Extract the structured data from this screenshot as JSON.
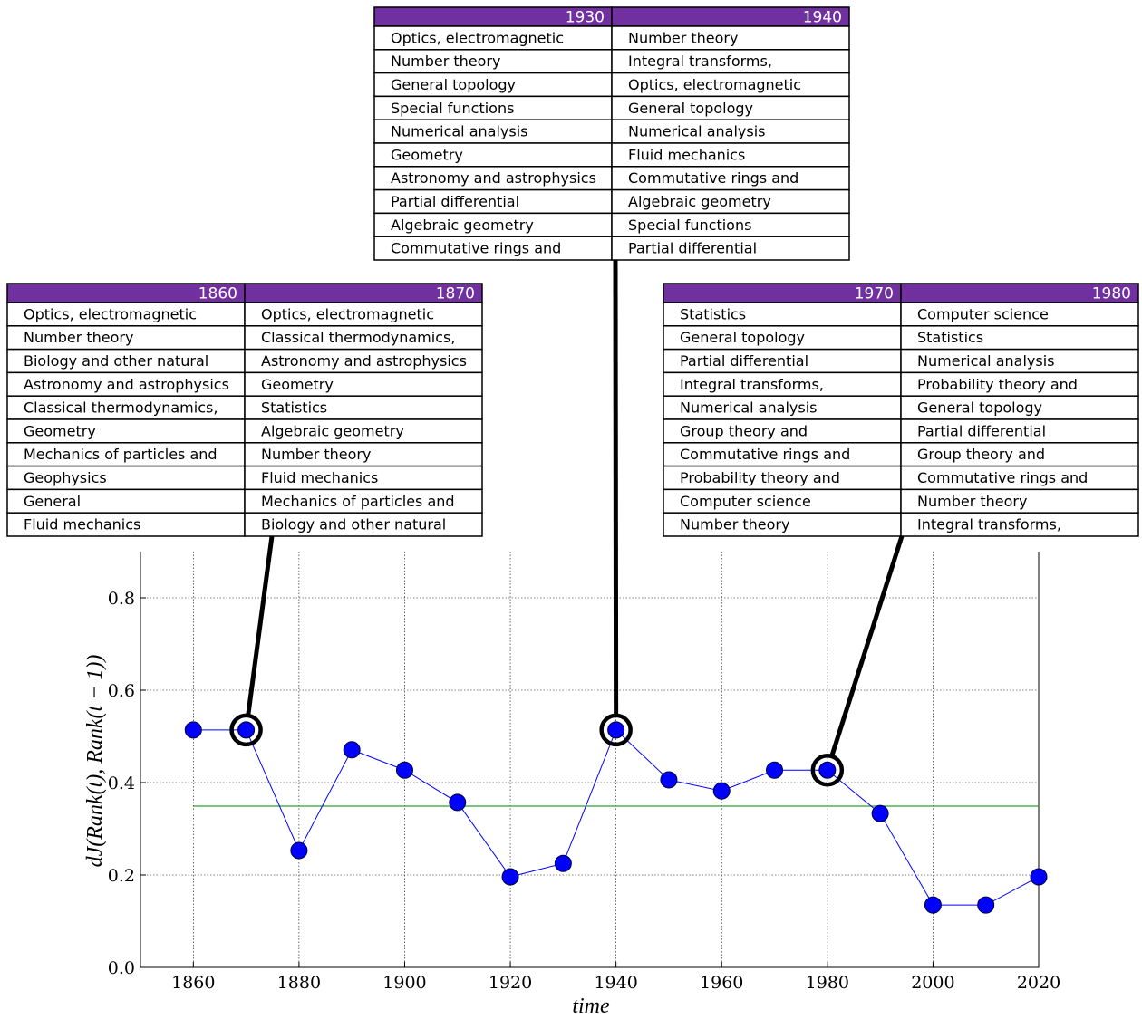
{
  "chart_data": {
    "type": "line",
    "x_label": "time",
    "y_label": "dJ(Rank(t), Rank(t − 1))",
    "x": [
      1860,
      1870,
      1880,
      1890,
      1900,
      1910,
      1920,
      1930,
      1940,
      1950,
      1960,
      1970,
      1980,
      1990,
      2000,
      2010,
      2020
    ],
    "values": [
      0.514,
      0.514,
      0.253,
      0.471,
      0.427,
      0.357,
      0.196,
      0.225,
      0.514,
      0.406,
      0.382,
      0.427,
      0.427,
      0.333,
      0.135,
      0.135,
      0.196
    ],
    "color": "#0000ff",
    "mean_line": 0.349,
    "mean_color": "#2ca02c",
    "xlim": [
      1850,
      2020
    ],
    "ylim": [
      0,
      0.9
    ],
    "xticks": [
      1860,
      1880,
      1900,
      1920,
      1940,
      1960,
      1980,
      2000,
      2020
    ],
    "yticks": [
      {
        "value": 0,
        "label": "0.0"
      },
      0.2,
      0.4,
      0.6,
      0.8
    ],
    "grid": true,
    "tables": [
      {
        "columns": [
          {
            "header": "1860",
            "rows": [
              "Optics, electromagnetic",
              "Number theory",
              "Biology and other natural",
              "Astronomy and astrophysics",
              "Classical thermodynamics,",
              "Geometry",
              "Mechanics of particles and",
              "Geophysics",
              "General",
              "Fluid mechanics"
            ]
          },
          {
            "header": "1870",
            "rows": [
              "Optics, electromagnetic",
              "Classical thermodynamics,",
              "Astronomy and astrophysics",
              "Geometry",
              "Statistics",
              "Algebraic geometry",
              "Number theory",
              "Fluid mechanics",
              "Mechanics of particles and",
              "Biology and other natural"
            ]
          }
        ]
      },
      {
        "columns": [
          {
            "header": "1930",
            "rows": [
              "Optics, electromagnetic",
              "Number theory",
              "General topology",
              "Special functions",
              "Numerical analysis",
              "Geometry",
              "Astronomy and astrophysics",
              "Partial differential",
              "Algebraic geometry",
              "Commutative rings and"
            ]
          },
          {
            "header": "1940",
            "rows": [
              "Number theory",
              "Integral transforms,",
              "Optics, electromagnetic",
              "General topology",
              "Numerical analysis",
              "Fluid mechanics",
              "Commutative rings and",
              "Algebraic geometry",
              "Special functions",
              "Partial differential"
            ]
          }
        ]
      },
      {
        "columns": [
          {
            "header": "1970",
            "rows": [
              "Statistics",
              "General topology",
              "Partial differential",
              "Integral transforms,",
              "Numerical analysis",
              "Group theory and",
              "Commutative rings and",
              "Probability theory and",
              "Computer science",
              "Number theory"
            ]
          },
          {
            "header": "1980",
            "rows": [
              "Computer science",
              "Statistics",
              "Numerical analysis",
              "Probability theory and",
              "General topology",
              "Partial differential",
              "Group theory and",
              "Commutative rings and",
              "Number theory",
              "Integral transforms,"
            ]
          }
        ]
      }
    ]
  }
}
